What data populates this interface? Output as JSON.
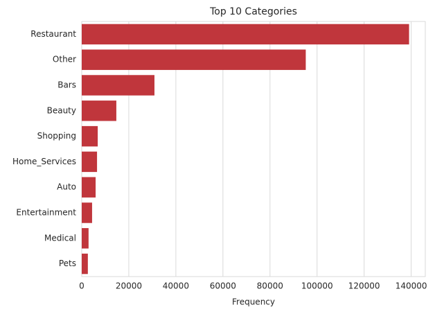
{
  "chart_data": {
    "type": "barh",
    "title": "Top 10 Categories",
    "xlabel": "Frequency",
    "categories": [
      "Restaurant",
      "Other",
      "Bars",
      "Beauty",
      "Shopping",
      "Home_Services",
      "Auto",
      "Entertainment",
      "Medical",
      "Pets"
    ],
    "values": [
      139100,
      95200,
      30900,
      14700,
      6800,
      6500,
      5900,
      4400,
      2900,
      2600
    ],
    "color": "#c0363c",
    "xlim": [
      0,
      146000
    ],
    "xticks": [
      0,
      20000,
      40000,
      60000,
      80000,
      100000,
      120000,
      140000
    ],
    "grid": true
  }
}
